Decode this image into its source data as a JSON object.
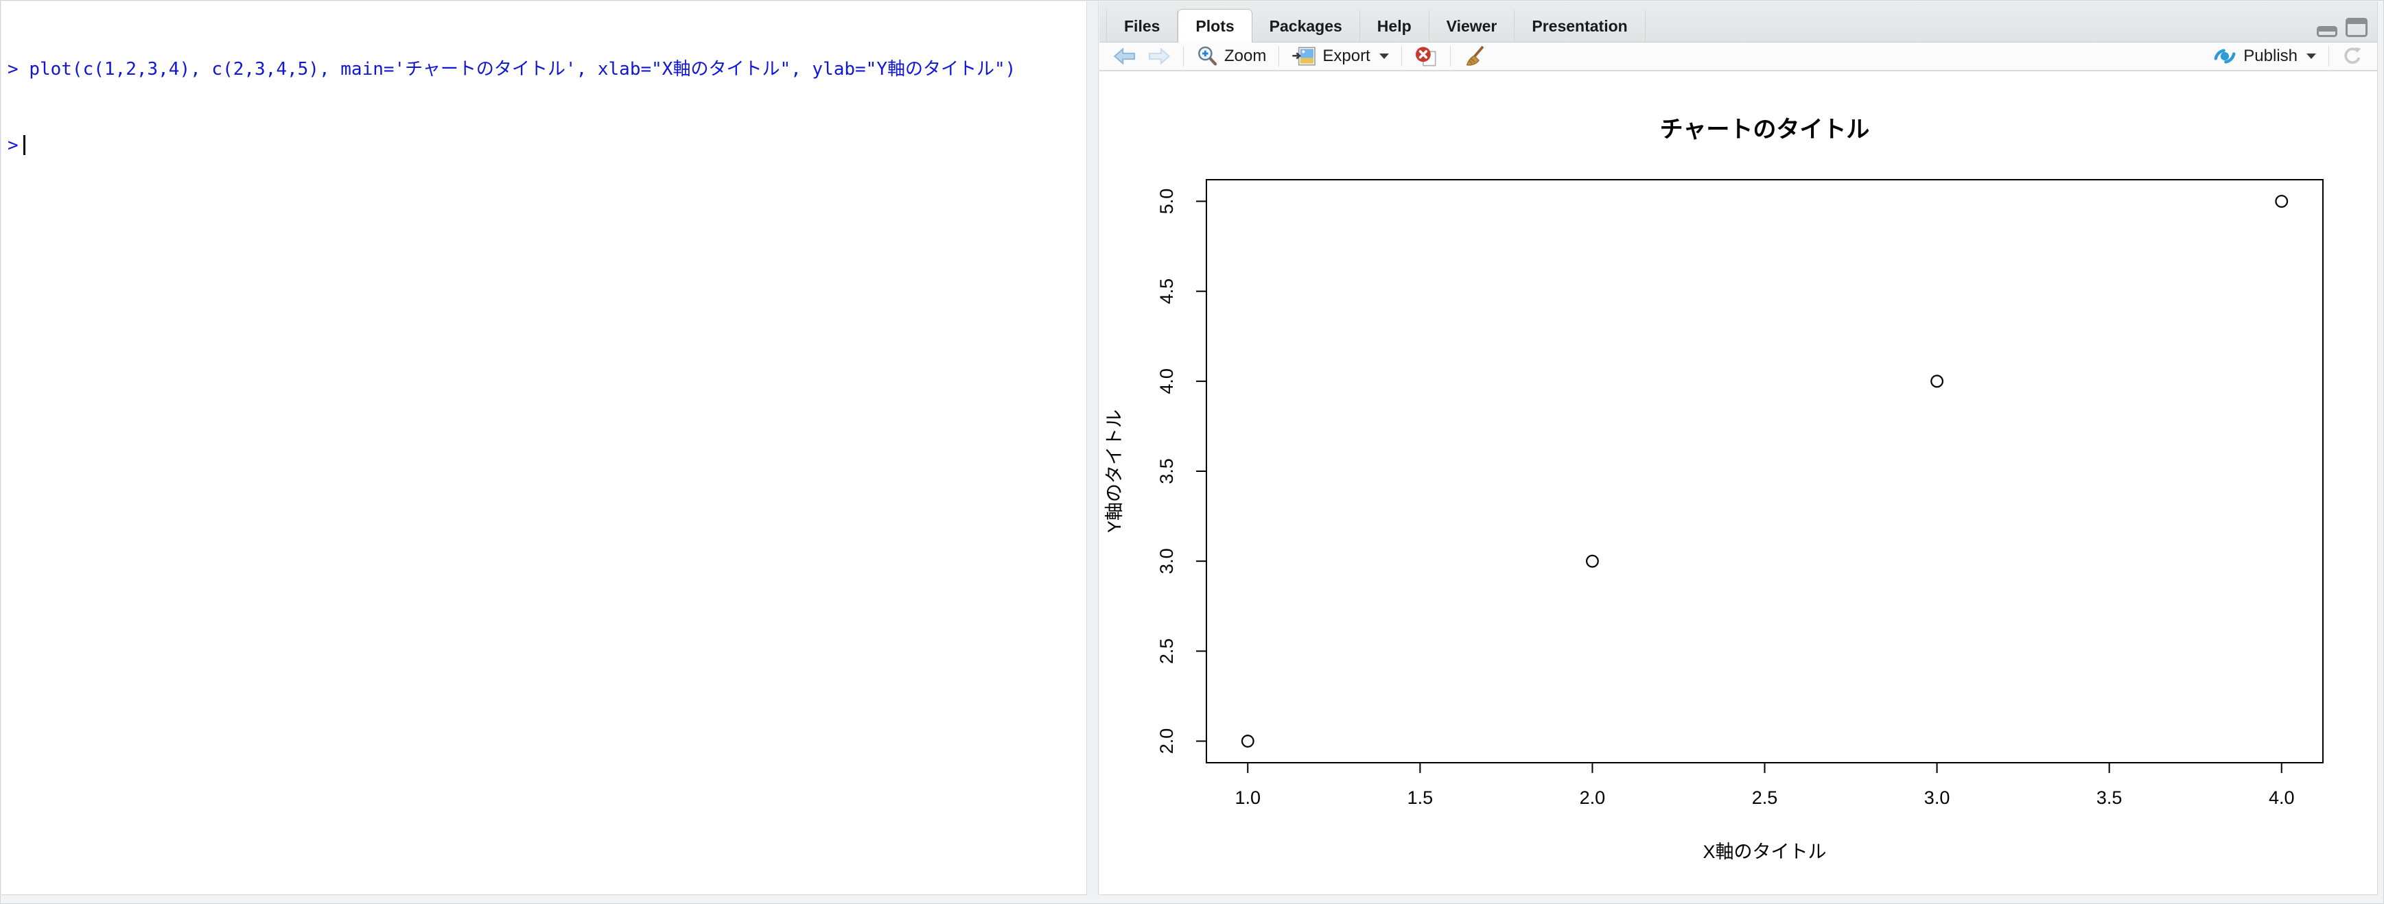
{
  "console": {
    "prompt": ">",
    "command": "plot(c(1,2,3,4), c(2,3,4,5), main='チャートのタイトル', xlab=\"X軸のタイトル\", ylab=\"Y軸のタイトル\")"
  },
  "panes": {
    "tabs": [
      {
        "label": "Files",
        "active": false
      },
      {
        "label": "Plots",
        "active": true
      },
      {
        "label": "Packages",
        "active": false
      },
      {
        "label": "Help",
        "active": false
      },
      {
        "label": "Viewer",
        "active": false
      },
      {
        "label": "Presentation",
        "active": false
      }
    ]
  },
  "toolbar": {
    "zoom_label": "Zoom",
    "export_label": "Export",
    "publish_label": "Publish"
  },
  "icons": {
    "back": "arrow-left",
    "forward": "arrow-right",
    "zoom": "magnifier-plus",
    "export": "image-export",
    "export_caret": "chevron-down",
    "remove_plot": "red-circle-x",
    "clear_plots": "broom",
    "publish": "rstudio-connect-swoosh",
    "publish_caret": "chevron-down",
    "refresh": "circular-arrow",
    "minimize_pane": "collapse-window",
    "maximize_pane": "expand-window"
  },
  "colors": {
    "console_blue": "#1016d6",
    "tab_text": "#1a1a1a",
    "publish_blue": "#2e9bd6",
    "remove_red": "#c53b30",
    "broom_brown": "#c8913f",
    "arrow_blue": "#b9d8ef"
  },
  "chart_data": {
    "type": "scatter",
    "x": [
      1,
      2,
      3,
      4
    ],
    "y": [
      2,
      3,
      4,
      5
    ],
    "title": "チャートのタイトル",
    "xlabel": "X軸のタイトル",
    "ylabel": "Y軸のタイトル",
    "xticks": [
      1.0,
      1.5,
      2.0,
      2.5,
      3.0,
      3.5,
      4.0
    ],
    "yticks": [
      2.0,
      2.5,
      3.0,
      3.5,
      4.0,
      4.5,
      5.0
    ],
    "xlim": [
      0.88,
      4.12
    ],
    "ylim": [
      1.88,
      5.12
    ],
    "marker": "open-circle",
    "grid": false,
    "legend": null
  }
}
